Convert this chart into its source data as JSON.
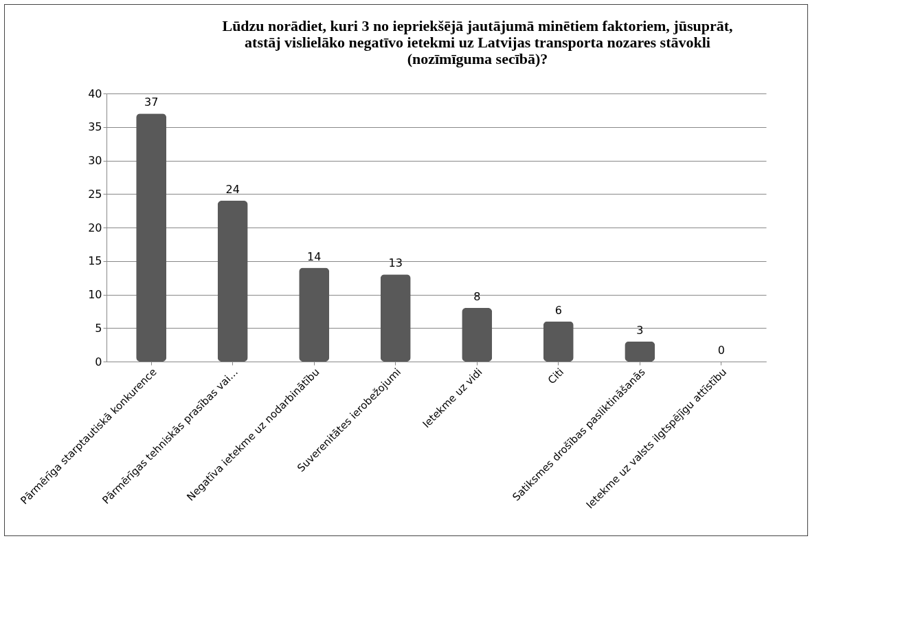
{
  "chart_data": {
    "type": "bar",
    "title": "Lūdzu norādiet, kuri 3 no iepriekšējā jautājumā minētiem faktoriem, jūsuprāt, atstāj vislielāko negatīvo ietekmi uz Latvijas transporta nozares stāvokli (nozīmīguma secībā)?",
    "categories": [
      "Pārmērīga starptautiskā konkurence",
      "Pārmērīgas tehniskās prasības vai…",
      "Negatīva ietekme uz nodarbinātību",
      "Suverenitātes ierobežojumi",
      "Ietekme uz vidi",
      "Citi",
      "Satiksmes drošības pasliktināšanās",
      "Ietekme uz valsts ilgtspējīgu attīstību"
    ],
    "values": [
      37,
      24,
      14,
      13,
      8,
      6,
      3,
      0
    ],
    "color": "#595959",
    "ylim": [
      0,
      40
    ],
    "yticks": [
      0,
      5,
      10,
      15,
      20,
      25,
      30,
      35,
      40
    ],
    "grid": "y",
    "data_labels": true
  }
}
